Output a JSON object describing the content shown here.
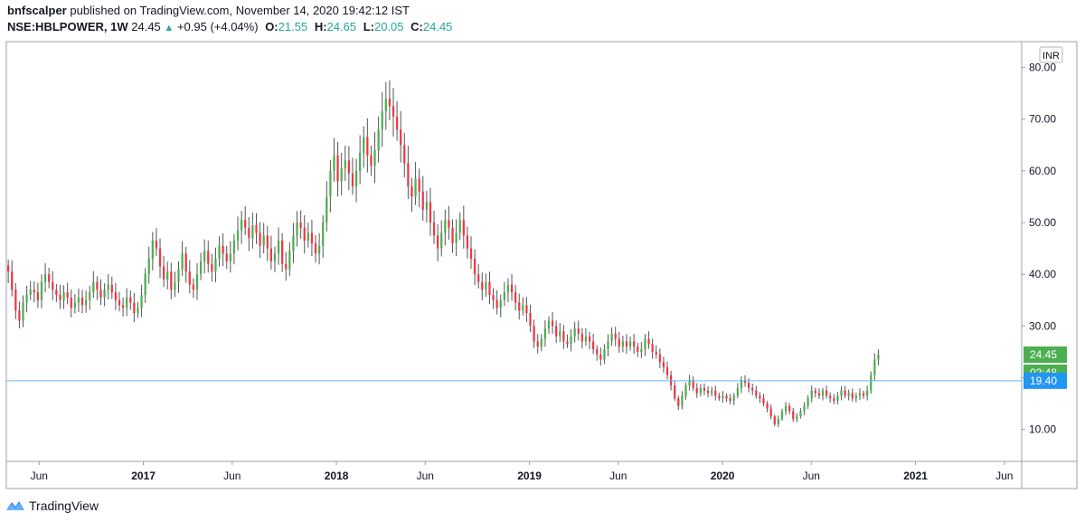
{
  "header": {
    "publisher": "bnfscalper",
    "published_text": "published on TradingView.com, November 14, 2020 19:42:12 IST",
    "symbol": "NSE:HBLPOWER, 1W",
    "last": "24.45",
    "change": "+0.95 (+4.04%)",
    "o_label": "O:",
    "o": "21.55",
    "h_label": "H:",
    "h": "24.65",
    "l_label": "L:",
    "l": "20.05",
    "c_label": "C:",
    "c": "24.45"
  },
  "footer": {
    "brand": "TradingView"
  },
  "colors": {
    "up": "#4caf50",
    "down": "#f23645",
    "wick": "#555555",
    "hline": "#64b5f6",
    "axis": "#9aa0a6"
  },
  "chart_data": {
    "type": "candlestick",
    "title": "NSE:HBLPOWER, 1W",
    "currency": "INR",
    "ylim": [
      3.8,
      85.0
    ],
    "xlim": [
      2016.29,
      2021.55
    ],
    "y_ticks": [
      10,
      20,
      30,
      40,
      50,
      60,
      70,
      80
    ],
    "y_tick_labels": [
      "10.00",
      "",
      "30.00",
      "40.00",
      "50.00",
      "60.00",
      "70.00",
      "80.00"
    ],
    "x_ticks": [
      {
        "x": 2016.46,
        "label": "Jun",
        "bold": false
      },
      {
        "x": 2017.0,
        "label": "2017",
        "bold": true
      },
      {
        "x": 2017.46,
        "label": "Jun",
        "bold": false
      },
      {
        "x": 2018.0,
        "label": "2018",
        "bold": true
      },
      {
        "x": 2018.46,
        "label": "Jun",
        "bold": false
      },
      {
        "x": 2019.0,
        "label": "2019",
        "bold": true
      },
      {
        "x": 2019.46,
        "label": "Jun",
        "bold": false
      },
      {
        "x": 2020.0,
        "label": "2020",
        "bold": true
      },
      {
        "x": 2020.46,
        "label": "Jun",
        "bold": false
      },
      {
        "x": 2021.0,
        "label": "2021",
        "bold": true
      },
      {
        "x": 2021.46,
        "label": "Jun",
        "bold": false
      }
    ],
    "horizontal_line": 19.4,
    "price_labels": [
      {
        "text": "24.45",
        "color": "#4caf50"
      },
      {
        "text": "02:48",
        "color": "#4caf50"
      },
      {
        "text": "19.40",
        "color": "#2196f3"
      }
    ],
    "start_x": 2016.3,
    "week_step": 0.01918,
    "closes": [
      40.5,
      37.0,
      33.0,
      31.0,
      34.5,
      36.0,
      37.0,
      36.5,
      35.0,
      38.5,
      40.0,
      38.5,
      37.0,
      36.0,
      35.0,
      36.5,
      35.5,
      33.5,
      34.5,
      35.5,
      34.0,
      35.0,
      36.5,
      38.5,
      37.0,
      35.5,
      37.0,
      38.0,
      36.5,
      35.0,
      34.0,
      33.5,
      35.5,
      34.5,
      32.5,
      33.5,
      36.0,
      40.0,
      43.0,
      46.5,
      45.0,
      41.5,
      39.0,
      40.5,
      37.0,
      38.5,
      41.0,
      44.0,
      40.5,
      38.0,
      37.0,
      40.0,
      42.5,
      44.5,
      42.0,
      40.5,
      43.0,
      45.5,
      44.0,
      42.5,
      44.0,
      46.5,
      48.5,
      50.5,
      49.0,
      47.0,
      49.5,
      48.0,
      45.5,
      47.5,
      45.0,
      42.5,
      44.0,
      46.5,
      42.0,
      41.0,
      44.5,
      47.5,
      50.0,
      49.0,
      46.5,
      48.0,
      46.0,
      44.0,
      45.5,
      50.0,
      55.0,
      60.0,
      63.0,
      58.0,
      60.5,
      62.0,
      59.5,
      57.0,
      60.0,
      63.5,
      66.5,
      63.0,
      61.0,
      64.0,
      68.0,
      71.5,
      74.0,
      72.5,
      70.5,
      68.0,
      65.0,
      61.5,
      57.0,
      55.0,
      58.5,
      56.0,
      52.5,
      54.0,
      50.0,
      47.5,
      45.0,
      48.0,
      50.5,
      49.0,
      46.0,
      48.0,
      50.5,
      47.5,
      45.0,
      43.0,
      40.0,
      38.5,
      37.0,
      38.5,
      36.0,
      35.0,
      33.5,
      35.0,
      36.5,
      38.0,
      36.5,
      34.5,
      33.0,
      34.0,
      32.5,
      30.0,
      27.0,
      26.0,
      27.5,
      29.5,
      31.0,
      30.0,
      28.0,
      29.0,
      27.0,
      26.5,
      28.0,
      29.5,
      28.5,
      27.0,
      28.0,
      27.0,
      25.5,
      24.5,
      23.5,
      25.5,
      27.0,
      28.5,
      27.5,
      26.0,
      27.0,
      26.0,
      27.0,
      26.0,
      25.0,
      25.5,
      27.5,
      26.5,
      25.0,
      24.5,
      23.0,
      22.0,
      20.5,
      18.5,
      16.0,
      14.5,
      16.5,
      18.5,
      19.5,
      18.0,
      17.0,
      18.0,
      17.5,
      17.0,
      17.5,
      16.5,
      16.0,
      16.5,
      16.0,
      15.5,
      16.5,
      18.0,
      19.5,
      19.0,
      18.0,
      17.5,
      16.5,
      16.0,
      15.0,
      14.0,
      12.5,
      11.0,
      12.0,
      13.5,
      14.5,
      13.5,
      12.0,
      12.5,
      13.5,
      14.5,
      16.0,
      17.5,
      17.0,
      16.5,
      17.5,
      16.5,
      16.0,
      15.5,
      16.5,
      17.5,
      16.5,
      17.0,
      16.0,
      16.5,
      17.0,
      16.5,
      17.5,
      20.5,
      23.5,
      24.45
    ],
    "wick_pct": 0.055
  }
}
